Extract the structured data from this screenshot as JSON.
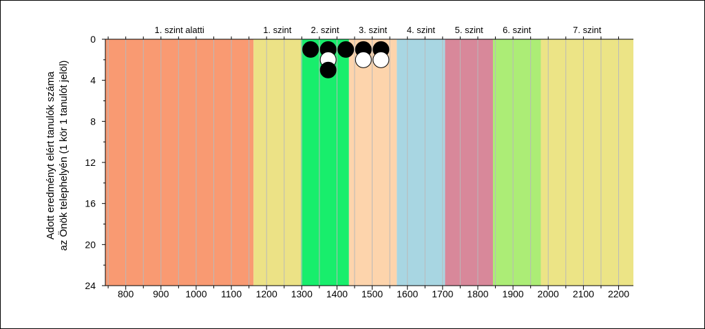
{
  "chart_data": {
    "type": "scatter",
    "title": "",
    "ylabel_line1": "Adott eredményt elért tanulók száma",
    "ylabel_line2": "az Önök telephelyén (1 kör 1 tanulót jelöl)",
    "xlabel": "",
    "xlim": [
      742,
      2242
    ],
    "ylim": [
      0,
      24
    ],
    "y_inverted": true,
    "grid": "vertical every 50 units",
    "x_ticks": [
      800,
      900,
      1000,
      1100,
      1200,
      1300,
      1400,
      1500,
      1600,
      1700,
      1800,
      1900,
      2000,
      2100,
      2200
    ],
    "y_ticks": [
      0,
      4,
      8,
      12,
      16,
      20,
      24
    ],
    "bands": [
      {
        "label": "1. szint alatti",
        "from": 742,
        "to": 1163,
        "color": "#f99a72"
      },
      {
        "label": "1. szint",
        "from": 1163,
        "to": 1298,
        "color": "#ece286"
      },
      {
        "label": "2. szint",
        "from": 1298,
        "to": 1434,
        "color": "#18ee6c"
      },
      {
        "label": "3. szint",
        "from": 1434,
        "to": 1570,
        "color": "#fdd4ac"
      },
      {
        "label": "4. szint",
        "from": 1570,
        "to": 1707,
        "color": "#a8d6e2"
      },
      {
        "label": "5. szint",
        "from": 1707,
        "to": 1843,
        "color": "#d8889a"
      },
      {
        "label": "6. szint",
        "from": 1843,
        "to": 1979,
        "color": "#aced76"
      },
      {
        "label": "7. szint",
        "from": 1979,
        "to": 2242,
        "color": "#ece486"
      }
    ],
    "series": [
      {
        "points": [
          {
            "x": 1325,
            "y": 1,
            "fill": "black"
          },
          {
            "x": 1375,
            "y": 1,
            "fill": "black"
          },
          {
            "x": 1375,
            "y": 2,
            "fill": "white"
          },
          {
            "x": 1375,
            "y": 3,
            "fill": "black"
          },
          {
            "x": 1425,
            "y": 1,
            "fill": "black"
          },
          {
            "x": 1475,
            "y": 1,
            "fill": "black"
          },
          {
            "x": 1475,
            "y": 2,
            "fill": "white"
          },
          {
            "x": 1525,
            "y": 1,
            "fill": "black"
          },
          {
            "x": 1525,
            "y": 2,
            "fill": "white"
          }
        ]
      }
    ]
  }
}
